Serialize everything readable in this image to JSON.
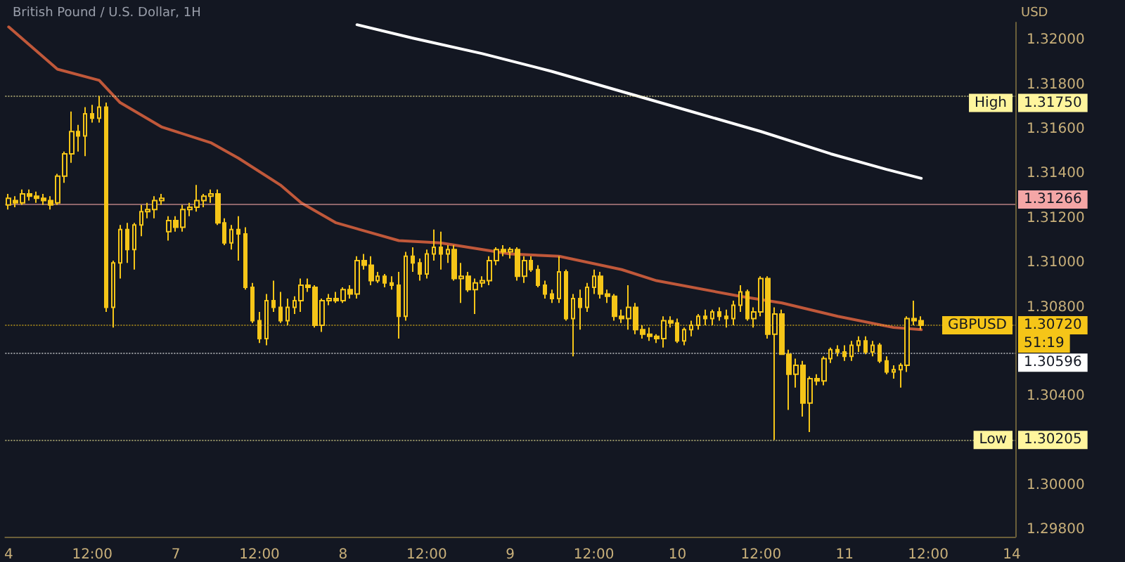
{
  "chart_data": {
    "type": "candlestick",
    "title": "British Pound / U.S. Dollar, 1H",
    "ylabel": "USD",
    "color": "#f5c518",
    "categories": [
      "4",
      null,
      null,
      null,
      null,
      null,
      null,
      null,
      null,
      null,
      null,
      null,
      "12:00",
      null,
      null,
      null,
      null,
      null,
      null,
      null,
      null,
      null,
      null,
      null,
      "7",
      null,
      null,
      null,
      null,
      null,
      null,
      null,
      null,
      null,
      null,
      null,
      "12:00",
      null,
      null,
      null,
      null,
      null,
      null,
      null,
      null,
      null,
      null,
      null,
      "8",
      null,
      null,
      null,
      null,
      null,
      null,
      null,
      null,
      null,
      null,
      null,
      "12:00",
      null,
      null,
      null,
      null,
      null,
      null,
      null,
      null,
      null,
      null,
      null,
      "9",
      null,
      null,
      null,
      null,
      null,
      null,
      null,
      null,
      null,
      null,
      null,
      "12:00",
      null,
      null,
      null,
      null,
      null,
      null,
      null,
      null,
      null,
      null,
      null,
      "10",
      null,
      null,
      null,
      null,
      null,
      null,
      null,
      null,
      null,
      null,
      null,
      "12:00",
      null,
      null,
      null,
      null,
      null,
      null,
      null,
      null,
      null,
      null,
      null,
      "11",
      null,
      null,
      null,
      null,
      null,
      null,
      null,
      null,
      null,
      null,
      null,
      "12:00",
      null,
      null,
      null,
      null,
      null,
      null,
      null,
      null,
      null,
      null,
      null,
      "14"
    ],
    "ohlc": [
      [
        1.3126,
        1.3131,
        1.3124,
        1.3129
      ],
      [
        1.3128,
        1.313,
        1.3125,
        1.3127
      ],
      [
        1.3127,
        1.3133,
        1.3126,
        1.3131
      ],
      [
        1.3131,
        1.3133,
        1.3128,
        1.313
      ],
      [
        1.313,
        1.3132,
        1.3127,
        1.3129
      ],
      [
        1.3129,
        1.3131,
        1.3126,
        1.3128
      ],
      [
        1.3128,
        1.313,
        1.3124,
        1.3126
      ],
      [
        1.3127,
        1.314,
        1.3126,
        1.3139
      ],
      [
        1.3139,
        1.315,
        1.3136,
        1.3149
      ],
      [
        1.3149,
        1.3168,
        1.3145,
        1.3159
      ],
      [
        1.3159,
        1.3162,
        1.315,
        1.3157
      ],
      [
        1.3157,
        1.317,
        1.3148,
        1.3167
      ],
      [
        1.3167,
        1.3171,
        1.3163,
        1.3165
      ],
      [
        1.3165,
        1.3175,
        1.3163,
        1.317
      ],
      [
        1.317,
        1.3172,
        1.3078,
        1.308
      ],
      [
        1.308,
        1.3101,
        1.3071,
        1.31
      ],
      [
        1.31,
        1.3117,
        1.3093,
        1.3115
      ],
      [
        1.3115,
        1.3118,
        1.31,
        1.3106
      ],
      [
        1.3106,
        1.3118,
        1.3097,
        1.3117
      ],
      [
        1.3117,
        1.3126,
        1.3112,
        1.3123
      ],
      [
        1.3123,
        1.3127,
        1.312,
        1.3124
      ],
      [
        1.3124,
        1.313,
        1.312,
        1.3128
      ],
      [
        1.3128,
        1.3131,
        1.3126,
        1.3129
      ],
      [
        1.3114,
        1.3121,
        1.311,
        1.3119
      ],
      [
        1.3119,
        1.3121,
        1.3114,
        1.3116
      ],
      [
        1.3116,
        1.3126,
        1.3114,
        1.3124
      ],
      [
        1.3124,
        1.3127,
        1.3121,
        1.3125
      ],
      [
        1.3125,
        1.3135,
        1.3123,
        1.3128
      ],
      [
        1.3128,
        1.3131,
        1.3125,
        1.313
      ],
      [
        1.313,
        1.3133,
        1.3127,
        1.3131
      ],
      [
        1.3131,
        1.3133,
        1.3117,
        1.3118
      ],
      [
        1.3118,
        1.312,
        1.3108,
        1.3109
      ],
      [
        1.3109,
        1.3117,
        1.3106,
        1.3115
      ],
      [
        1.3115,
        1.3121,
        1.3101,
        1.3113
      ],
      [
        1.3113,
        1.3116,
        1.3088,
        1.3089
      ],
      [
        1.3089,
        1.3091,
        1.3073,
        1.3074
      ],
      [
        1.3074,
        1.3078,
        1.3064,
        1.3066
      ],
      [
        1.3066,
        1.3086,
        1.3063,
        1.3083
      ],
      [
        1.3083,
        1.3092,
        1.3078,
        1.308
      ],
      [
        1.308,
        1.3087,
        1.3073,
        1.3074
      ],
      [
        1.3074,
        1.3084,
        1.3072,
        1.308
      ],
      [
        1.308,
        1.3085,
        1.3077,
        1.3083
      ],
      [
        1.3083,
        1.3093,
        1.3078,
        1.309
      ],
      [
        1.309,
        1.3093,
        1.3087,
        1.3089
      ],
      [
        1.3089,
        1.309,
        1.3071,
        1.3072
      ],
      [
        1.3072,
        1.3084,
        1.3069,
        1.3083
      ],
      [
        1.3083,
        1.3086,
        1.3081,
        1.3084
      ],
      [
        1.3084,
        1.3087,
        1.3082,
        1.3083
      ],
      [
        1.3083,
        1.3089,
        1.3082,
        1.3088
      ],
      [
        1.3088,
        1.309,
        1.3084,
        1.3086
      ],
      [
        1.3086,
        1.3103,
        1.3084,
        1.3101
      ],
      [
        1.3101,
        1.3104,
        1.3097,
        1.3099
      ],
      [
        1.3099,
        1.3103,
        1.309,
        1.3092
      ],
      [
        1.3092,
        1.3096,
        1.3091,
        1.3094
      ],
      [
        1.3094,
        1.3095,
        1.3089,
        1.3091
      ],
      [
        1.3091,
        1.3094,
        1.3088,
        1.309
      ],
      [
        1.309,
        1.3096,
        1.3066,
        1.3076
      ],
      [
        1.3076,
        1.3105,
        1.3074,
        1.3103
      ],
      [
        1.3103,
        1.3107,
        1.3096,
        1.31
      ],
      [
        1.31,
        1.3102,
        1.3092,
        1.3095
      ],
      [
        1.3095,
        1.3106,
        1.3093,
        1.3104
      ],
      [
        1.3104,
        1.3115,
        1.3101,
        1.3107
      ],
      [
        1.3107,
        1.3114,
        1.3097,
        1.3104
      ],
      [
        1.3104,
        1.3108,
        1.31,
        1.3106
      ],
      [
        1.3106,
        1.3108,
        1.3092,
        1.3093
      ],
      [
        1.3093,
        1.31,
        1.3082,
        1.3094
      ],
      [
        1.3094,
        1.3096,
        1.3087,
        1.3088
      ],
      [
        1.3088,
        1.3093,
        1.3077,
        1.3091
      ],
      [
        1.3091,
        1.3094,
        1.3089,
        1.3092
      ],
      [
        1.3092,
        1.3103,
        1.309,
        1.3101
      ],
      [
        1.3101,
        1.3107,
        1.3099,
        1.3106
      ],
      [
        1.3106,
        1.3108,
        1.3103,
        1.3105
      ],
      [
        1.3105,
        1.3107,
        1.3102,
        1.3106
      ],
      [
        1.3106,
        1.3107,
        1.3092,
        1.3094
      ],
      [
        1.3094,
        1.3103,
        1.3091,
        1.3101
      ],
      [
        1.3101,
        1.3103,
        1.3096,
        1.3097
      ],
      [
        1.3097,
        1.3099,
        1.3089,
        1.309
      ],
      [
        1.309,
        1.3092,
        1.3084,
        1.3086
      ],
      [
        1.3086,
        1.3088,
        1.3082,
        1.3084
      ],
      [
        1.3084,
        1.3103,
        1.3082,
        1.3096
      ],
      [
        1.3096,
        1.3097,
        1.3074,
        1.3075
      ],
      [
        1.3075,
        1.3086,
        1.3058,
        1.3084
      ],
      [
        1.3084,
        1.3088,
        1.307,
        1.308
      ],
      [
        1.308,
        1.3091,
        1.3078,
        1.3089
      ],
      [
        1.3089,
        1.3097,
        1.3086,
        1.3094
      ],
      [
        1.3094,
        1.3096,
        1.3084,
        1.3086
      ],
      [
        1.3086,
        1.3088,
        1.3082,
        1.3085
      ],
      [
        1.3085,
        1.3086,
        1.3074,
        1.3076
      ],
      [
        1.3076,
        1.3079,
        1.3073,
        1.3075
      ],
      [
        1.3075,
        1.309,
        1.307,
        1.308
      ],
      [
        1.308,
        1.3082,
        1.3068,
        1.307
      ],
      [
        1.307,
        1.3072,
        1.3066,
        1.3068
      ],
      [
        1.3068,
        1.3071,
        1.3065,
        1.3067
      ],
      [
        1.3067,
        1.3068,
        1.3064,
        1.3066
      ],
      [
        1.3066,
        1.3076,
        1.3062,
        1.3074
      ],
      [
        1.3074,
        1.3076,
        1.3071,
        1.3073
      ],
      [
        1.3073,
        1.3075,
        1.3064,
        1.3065
      ],
      [
        1.3065,
        1.3071,
        1.3063,
        1.307
      ],
      [
        1.307,
        1.3074,
        1.3067,
        1.3072
      ],
      [
        1.3072,
        1.3077,
        1.307,
        1.3076
      ],
      [
        1.3076,
        1.3079,
        1.3072,
        1.3075
      ],
      [
        1.3075,
        1.3079,
        1.3072,
        1.3078
      ],
      [
        1.3078,
        1.308,
        1.3074,
        1.3076
      ],
      [
        1.3076,
        1.3079,
        1.3071,
        1.3075
      ],
      [
        1.3075,
        1.3083,
        1.3072,
        1.3081
      ],
      [
        1.3081,
        1.309,
        1.3078,
        1.3087
      ],
      [
        1.3087,
        1.3088,
        1.3074,
        1.3075
      ],
      [
        1.3075,
        1.308,
        1.3071,
        1.3078
      ],
      [
        1.3078,
        1.3094,
        1.3076,
        1.3093
      ],
      [
        1.3093,
        1.3094,
        1.3066,
        1.3068
      ],
      [
        1.3068,
        1.308,
        1.30205,
        1.3077
      ],
      [
        1.3077,
        1.3079,
        1.3059,
        1.3059
      ],
      [
        1.3059,
        1.3061,
        1.3034,
        1.305
      ],
      [
        1.305,
        1.3057,
        1.3044,
        1.3054
      ],
      [
        1.3054,
        1.3056,
        1.3031,
        1.3037
      ],
      [
        1.3037,
        1.3049,
        1.3024,
        1.3048
      ],
      [
        1.3048,
        1.305,
        1.3045,
        1.3047
      ],
      [
        1.3047,
        1.3058,
        1.3045,
        1.3057
      ],
      [
        1.3057,
        1.3062,
        1.3055,
        1.3061
      ],
      [
        1.3061,
        1.3063,
        1.3058,
        1.306
      ],
      [
        1.306,
        1.3063,
        1.3056,
        1.3058
      ],
      [
        1.3058,
        1.3065,
        1.3056,
        1.3063
      ],
      [
        1.3063,
        1.3067,
        1.306,
        1.3065
      ],
      [
        1.3065,
        1.3067,
        1.3059,
        1.306
      ],
      [
        1.306,
        1.3065,
        1.3058,
        1.3063
      ],
      [
        1.3063,
        1.3064,
        1.3055,
        1.3056
      ],
      [
        1.3056,
        1.3058,
        1.305,
        1.3051
      ],
      [
        1.3051,
        1.3054,
        1.3048,
        1.3052
      ],
      [
        1.3052,
        1.3055,
        1.3044,
        1.3054
      ],
      [
        1.3054,
        1.3076,
        1.3051,
        1.3075
      ],
      [
        1.3075,
        1.3083,
        1.3072,
        1.3074
      ],
      [
        1.3074,
        1.3076,
        1.307,
        1.3072
      ],
      null,
      null,
      null,
      null,
      null,
      null,
      null,
      null,
      null,
      null,
      null,
      null,
      null
    ],
    "series": [
      {
        "type": "line",
        "color": "#ffffff",
        "values": [
          null,
          null,
          null,
          null,
          null,
          null,
          null,
          null,
          null,
          null,
          null,
          null,
          null,
          null,
          null,
          null,
          null,
          null,
          null,
          null,
          null,
          null,
          null,
          null,
          null,
          null,
          null,
          null,
          null,
          null,
          null,
          null,
          null,
          null,
          null,
          null,
          null,
          null,
          null,
          null,
          null,
          null,
          null,
          null,
          null,
          null,
          null,
          null,
          null,
          null,
          1.3207,
          null,
          null,
          null,
          null,
          null,
          null,
          null,
          1.3201,
          null,
          null,
          null,
          null,
          null,
          null,
          null,
          null,
          null,
          1.3194,
          null,
          null,
          null,
          null,
          null,
          null,
          null,
          null,
          null,
          1.3186,
          null,
          null,
          null,
          null,
          null,
          null,
          null,
          null,
          null,
          1.3177,
          null,
          null,
          null,
          null,
          null,
          null,
          null,
          null,
          null,
          1.3168,
          null,
          null,
          null,
          null,
          null,
          null,
          null,
          null,
          null,
          1.3159,
          null,
          null,
          null,
          null,
          null,
          null,
          null,
          null,
          null,
          1.3149,
          null,
          null,
          null,
          null,
          null,
          null,
          null,
          1.3142,
          null,
          null,
          null,
          null,
          1.3138,
          null,
          null,
          null,
          null,
          null,
          null,
          null,
          null,
          null,
          null,
          null,
          null,
          null
        ]
      },
      {
        "type": "line",
        "color": "#c0583a",
        "values": [
          1.3206,
          null,
          null,
          null,
          null,
          null,
          null,
          1.3187,
          null,
          null,
          null,
          null,
          null,
          1.3182,
          null,
          null,
          1.3172,
          null,
          null,
          null,
          null,
          null,
          1.3161,
          null,
          null,
          null,
          null,
          null,
          null,
          1.3154,
          null,
          null,
          null,
          1.3147,
          null,
          null,
          null,
          null,
          null,
          1.3135,
          null,
          null,
          1.3127,
          null,
          null,
          null,
          null,
          1.3118,
          null,
          null,
          null,
          null,
          null,
          null,
          null,
          null,
          1.311,
          null,
          null,
          null,
          null,
          null,
          1.3109,
          null,
          null,
          null,
          null,
          null,
          null,
          null,
          null,
          null,
          1.3104,
          null,
          null,
          null,
          null,
          null,
          null,
          1.3103,
          null,
          null,
          null,
          null,
          null,
          null,
          null,
          null,
          1.3097,
          null,
          null,
          null,
          null,
          1.3092,
          null,
          null,
          null,
          null,
          null,
          null,
          null,
          null,
          null,
          null,
          null,
          1.3085,
          null,
          null,
          null,
          null,
          null,
          1.3082,
          null,
          null,
          null,
          null,
          null,
          null,
          null,
          1.3076,
          null,
          null,
          null,
          null,
          null,
          null,
          null,
          1.3071,
          null,
          null,
          null,
          1.307,
          null,
          null,
          null,
          null,
          null,
          null,
          null,
          null,
          null,
          null,
          null,
          null,
          null
        ]
      }
    ],
    "ylim": [
      1.2977,
      1.3208
    ],
    "yticks": [
      {
        "value": 1.298,
        "label": "1.29800"
      },
      {
        "value": 1.3,
        "label": "1.30000"
      },
      {
        "value": 1.304,
        "label": "1.30400"
      },
      {
        "value": 1.308,
        "label": "1.30800"
      },
      {
        "value": 1.31,
        "label": "1.31000"
      },
      {
        "value": 1.312,
        "label": "1.31200"
      },
      {
        "value": 1.314,
        "label": "1.31400"
      },
      {
        "value": 1.316,
        "label": "1.31600"
      },
      {
        "value": 1.318,
        "label": "1.31800"
      },
      {
        "value": 1.32,
        "label": "1.32000"
      }
    ],
    "ref_lines": [
      {
        "axis": "y",
        "value": 1.3175,
        "label": "1.31750",
        "color": "#fff59d",
        "line_style": "dotted"
      },
      {
        "axis": "y",
        "value": 1.31266,
        "label": "1.31266",
        "color": "#f4a6a6",
        "line_style": "solid"
      },
      {
        "axis": "y",
        "value": 1.3072,
        "label": "1.30720",
        "color": "#f5c518",
        "line_style": "dotted"
      },
      {
        "axis": "y",
        "value": 1.30596,
        "label": "1.30596",
        "color": "#ffffff",
        "line_style": "dotted"
      },
      {
        "axis": "y",
        "value": 1.30205,
        "label": "1.30205",
        "color": "#fff59d",
        "line_style": "dotted"
      }
    ],
    "annotations": [
      {
        "text": "High",
        "y": 1.3175
      },
      {
        "text": "GBPUSD",
        "y": 1.3072
      },
      {
        "text": "Low",
        "y": 1.30205
      },
      "51:19"
    ],
    "marker": "none",
    "line_style": "solid"
  }
}
